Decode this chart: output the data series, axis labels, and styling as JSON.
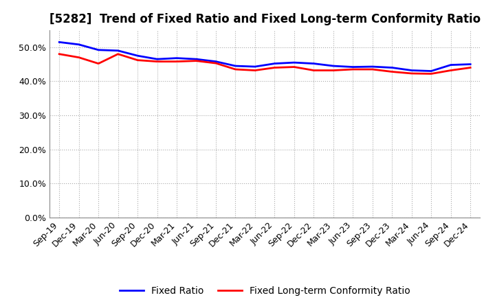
{
  "title": "[5282]  Trend of Fixed Ratio and Fixed Long-term Conformity Ratio",
  "x_labels": [
    "Sep-19",
    "Dec-19",
    "Mar-20",
    "Jun-20",
    "Sep-20",
    "Dec-20",
    "Mar-21",
    "Jun-21",
    "Sep-21",
    "Dec-21",
    "Mar-22",
    "Jun-22",
    "Sep-22",
    "Dec-22",
    "Mar-23",
    "Jun-23",
    "Sep-23",
    "Dec-23",
    "Mar-24",
    "Jun-24",
    "Sep-24",
    "Dec-24"
  ],
  "fixed_ratio": [
    51.5,
    50.8,
    49.2,
    49.0,
    47.5,
    46.5,
    46.8,
    46.5,
    45.8,
    44.5,
    44.3,
    45.2,
    45.5,
    45.2,
    44.5,
    44.2,
    44.3,
    44.0,
    43.2,
    43.0,
    44.8,
    45.0
  ],
  "fixed_lt_ratio": [
    48.0,
    47.0,
    45.2,
    48.0,
    46.2,
    45.8,
    45.8,
    46.0,
    45.3,
    43.5,
    43.2,
    44.0,
    44.2,
    43.2,
    43.2,
    43.5,
    43.5,
    42.8,
    42.3,
    42.2,
    43.2,
    44.0
  ],
  "fixed_ratio_color": "#0000FF",
  "fixed_lt_ratio_color": "#FF0000",
  "ylim": [
    0,
    55
  ],
  "yticks": [
    0,
    10,
    20,
    30,
    40,
    50
  ],
  "background_color": "#FFFFFF",
  "grid_color": "#AAAAAA",
  "legend_fixed_ratio": "Fixed Ratio",
  "legend_fixed_lt_ratio": "Fixed Long-term Conformity Ratio",
  "title_fontsize": 12,
  "axis_fontsize": 9,
  "legend_fontsize": 10,
  "line_width": 2.0
}
